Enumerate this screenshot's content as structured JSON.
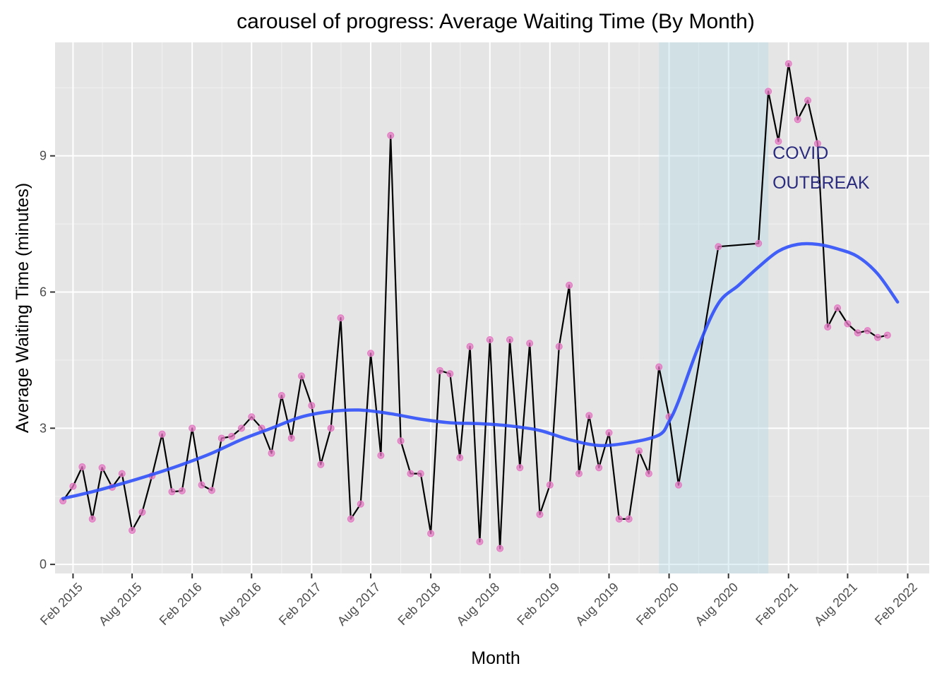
{
  "chart_data": {
    "type": "line",
    "title": "carousel of progress: Average Waiting Time (By Month)",
    "xlabel": "Month",
    "ylabel": "Average Waiting Time (minutes)",
    "x_ticks": [
      "2015-02-01",
      "2015-08-01",
      "2016-02-01",
      "2016-08-01",
      "2017-02-01",
      "2017-08-01",
      "2018-02-01",
      "2018-08-01",
      "2019-02-01",
      "2019-08-01",
      "2020-02-01",
      "2020-08-01",
      "2021-02-01",
      "2021-08-01",
      "2022-02-01"
    ],
    "x_tick_labels": [
      "Feb 2015",
      "Aug 2015",
      "Feb 2016",
      "Aug 2016",
      "Feb 2017",
      "Aug 2017",
      "Feb 2018",
      "Aug 2018",
      "Feb 2019",
      "Aug 2019",
      "Feb 2020",
      "Aug 2020",
      "Feb 2021",
      "Aug 2021",
      "Feb 2022"
    ],
    "y_ticks": [
      0,
      3,
      6,
      9
    ],
    "y_tick_labels": [
      "0",
      "3",
      "6",
      "9"
    ],
    "xlim": [
      "2014-12-08",
      "2022-04-08"
    ],
    "ylim": [
      -0.2,
      11.5
    ],
    "grid": true,
    "panel_background": "#e5e5e5",
    "line_color": "#000000",
    "point_color": "#e377c2",
    "smooth_color": "#3050f8",
    "highlight_color": "#add8e6",
    "annotation_color": "#2b2c7e",
    "highlight": {
      "start": "2020-01-01",
      "end": "2020-12-01"
    },
    "annotation": {
      "date": "2020-12-01",
      "lines": [
        "COVID",
        "OUTBREAK"
      ]
    },
    "series": [
      {
        "x": [
          "2015-01-01",
          "2015-02-01",
          "2015-03-01",
          "2015-04-01",
          "2015-05-01",
          "2015-06-01",
          "2015-07-01",
          "2015-08-01",
          "2015-09-01",
          "2015-10-01",
          "2015-11-01",
          "2015-12-01",
          "2016-01-01",
          "2016-02-01",
          "2016-03-01",
          "2016-04-01",
          "2016-05-01",
          "2016-06-01",
          "2016-07-01",
          "2016-08-01",
          "2016-09-01",
          "2016-10-01",
          "2016-11-01",
          "2016-12-01",
          "2017-01-01",
          "2017-02-01",
          "2017-03-01",
          "2017-04-01",
          "2017-05-01",
          "2017-06-01",
          "2017-07-01",
          "2017-08-01",
          "2017-09-01",
          "2017-10-01",
          "2017-11-01",
          "2017-12-01",
          "2018-01-01",
          "2018-02-01",
          "2018-03-01",
          "2018-04-01",
          "2018-05-01",
          "2018-06-01",
          "2018-07-01",
          "2018-08-01",
          "2018-09-01",
          "2018-10-01",
          "2018-11-01",
          "2018-12-01",
          "2019-01-01",
          "2019-02-01",
          "2019-03-01",
          "2019-04-01",
          "2019-05-01",
          "2019-06-01",
          "2019-07-01",
          "2019-08-01",
          "2019-09-01",
          "2019-10-01",
          "2019-11-01",
          "2019-12-01",
          "2020-01-01",
          "2020-02-01",
          "2020-03-01",
          "2020-07-01",
          "2020-11-01",
          "2020-12-01",
          "2021-01-01",
          "2021-02-01",
          "2021-03-01",
          "2021-04-01",
          "2021-05-01",
          "2021-06-01",
          "2021-07-01",
          "2021-08-01",
          "2021-09-01",
          "2021-10-01",
          "2021-11-01",
          "2021-12-01",
          "2022-01-01"
        ],
        "y": [
          1.4,
          1.72,
          2.15,
          1.0,
          2.13,
          1.7,
          2.0,
          0.75,
          1.15,
          1.95,
          2.87,
          1.6,
          1.62,
          3.0,
          1.75,
          1.63,
          2.78,
          2.82,
          3.0,
          3.25,
          3.0,
          2.45,
          3.72,
          2.78,
          4.15,
          3.5,
          2.2,
          3.0,
          5.43,
          1.0,
          1.33,
          4.65,
          2.4,
          9.45,
          2.72,
          2.0,
          2.0,
          0.68,
          4.27,
          4.2,
          2.35,
          4.8,
          0.5,
          4.95,
          0.35,
          4.95,
          2.13,
          4.87,
          1.1,
          1.75,
          4.8,
          6.15,
          2.0,
          3.28,
          2.13,
          2.9,
          1.0,
          1.0,
          2.5,
          2.0,
          4.35,
          3.25,
          1.75,
          7.0,
          7.07,
          10.42,
          9.32,
          11.03,
          9.8,
          10.22,
          9.27,
          5.23,
          5.65,
          5.3,
          5.1,
          5.15,
          5.0,
          5.05,
          null
        ]
      },
      {
        "name": "",
        "type": "smooth",
        "x": [
          "2015-01-01",
          "2015-04-01",
          "2015-07-01",
          "2015-10-01",
          "2016-01-01",
          "2016-04-01",
          "2016-07-01",
          "2016-10-01",
          "2017-01-01",
          "2017-04-01",
          "2017-07-01",
          "2017-10-01",
          "2018-01-01",
          "2018-04-01",
          "2018-07-01",
          "2018-10-01",
          "2019-01-01",
          "2019-04-01",
          "2019-07-01",
          "2019-10-01",
          "2020-01-01",
          "2020-02-01",
          "2020-03-01",
          "2020-05-01",
          "2020-07-01",
          "2020-09-01",
          "2020-11-01",
          "2021-01-01",
          "2021-03-01",
          "2021-05-01",
          "2021-07-01",
          "2021-09-01",
          "2021-11-01",
          "2022-01-01"
        ],
        "y": [
          1.45,
          1.6,
          1.78,
          1.98,
          2.2,
          2.45,
          2.75,
          3.0,
          3.25,
          3.37,
          3.4,
          3.32,
          3.2,
          3.12,
          3.1,
          3.05,
          2.95,
          2.75,
          2.62,
          2.68,
          2.85,
          3.15,
          3.6,
          4.8,
          5.75,
          6.15,
          6.55,
          6.9,
          7.05,
          7.05,
          6.95,
          6.78,
          6.4,
          5.78
        ]
      }
    ]
  }
}
